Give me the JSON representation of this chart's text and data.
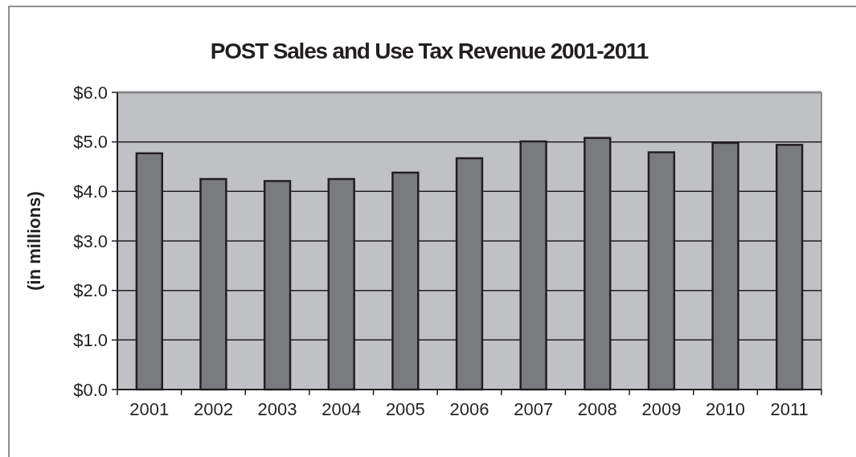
{
  "chart_data": {
    "type": "bar",
    "title": "POST Sales and Use Tax Revenue 2001-2011",
    "ylabel": "(in millions)",
    "categories": [
      "2001",
      "2002",
      "2003",
      "2004",
      "2005",
      "2006",
      "2007",
      "2008",
      "2009",
      "2010",
      "2011"
    ],
    "values": [
      4.77,
      4.25,
      4.21,
      4.25,
      4.38,
      4.67,
      5.01,
      5.08,
      4.79,
      4.98,
      4.94
    ],
    "color": "#7a7b7f",
    "ylim": [
      0,
      6
    ],
    "yticks": [
      {
        "value": 0,
        "label": "$0.0"
      },
      {
        "value": 1,
        "label": "$1.0"
      },
      {
        "value": 2,
        "label": "$2.0"
      },
      {
        "value": 3,
        "label": "$3.0"
      },
      {
        "value": 4,
        "label": "$4.0"
      },
      {
        "value": 5,
        "label": "$5.0"
      },
      {
        "value": 6,
        "label": "$6.0"
      }
    ],
    "grid": "y"
  }
}
